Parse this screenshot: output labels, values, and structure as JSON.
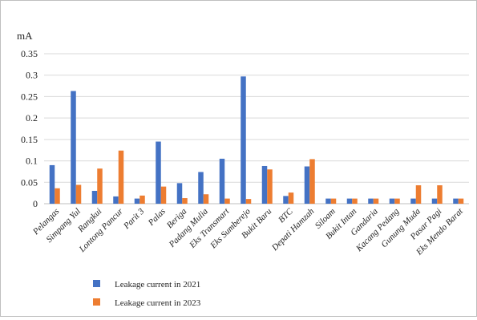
{
  "chart_data": {
    "type": "bar",
    "ylabel": "mA",
    "ylim": [
      0,
      0.35
    ],
    "yticks": [
      "0",
      "0.05",
      "0.1",
      "0.15",
      "0.2",
      "0.25",
      "0.3",
      "0.35"
    ],
    "grid": true,
    "legend_position": "bottom-left",
    "categories": [
      "Pelangas",
      "Simpang Yul",
      "Rangkui",
      "Lontong Pancur",
      "Parit 3",
      "Palas",
      "Beriga",
      "Padang Mulia",
      "Eks Transmart",
      "Eks Sumberejo",
      "Bukit Baru",
      "BTC",
      "Depati Hamzah",
      "Siloam",
      "Bukit Intan",
      "Gandaria",
      "Kacang Pedang",
      "Gunung Muda",
      "Pasar Pagi",
      "Eks Mendo Barat"
    ],
    "series": [
      {
        "name": "Leakage current in 2021",
        "color": "#4472C4",
        "values": [
          0.09,
          0.263,
          0.03,
          0.017,
          0.012,
          0.145,
          0.048,
          0.074,
          0.105,
          0.297,
          0.088,
          0.018,
          0.087,
          0.012,
          0.012,
          0.012,
          0.012,
          0.012,
          0.012,
          0.012
        ]
      },
      {
        "name": "Leakage current in 2023",
        "color": "#ED7D31",
        "values": [
          0.036,
          0.044,
          0.082,
          0.124,
          0.019,
          0.04,
          0.013,
          0.022,
          0.012,
          0.011,
          0.08,
          0.026,
          0.104,
          0.012,
          0.012,
          0.012,
          0.012,
          0.043,
          0.043,
          0.012
        ]
      }
    ]
  }
}
